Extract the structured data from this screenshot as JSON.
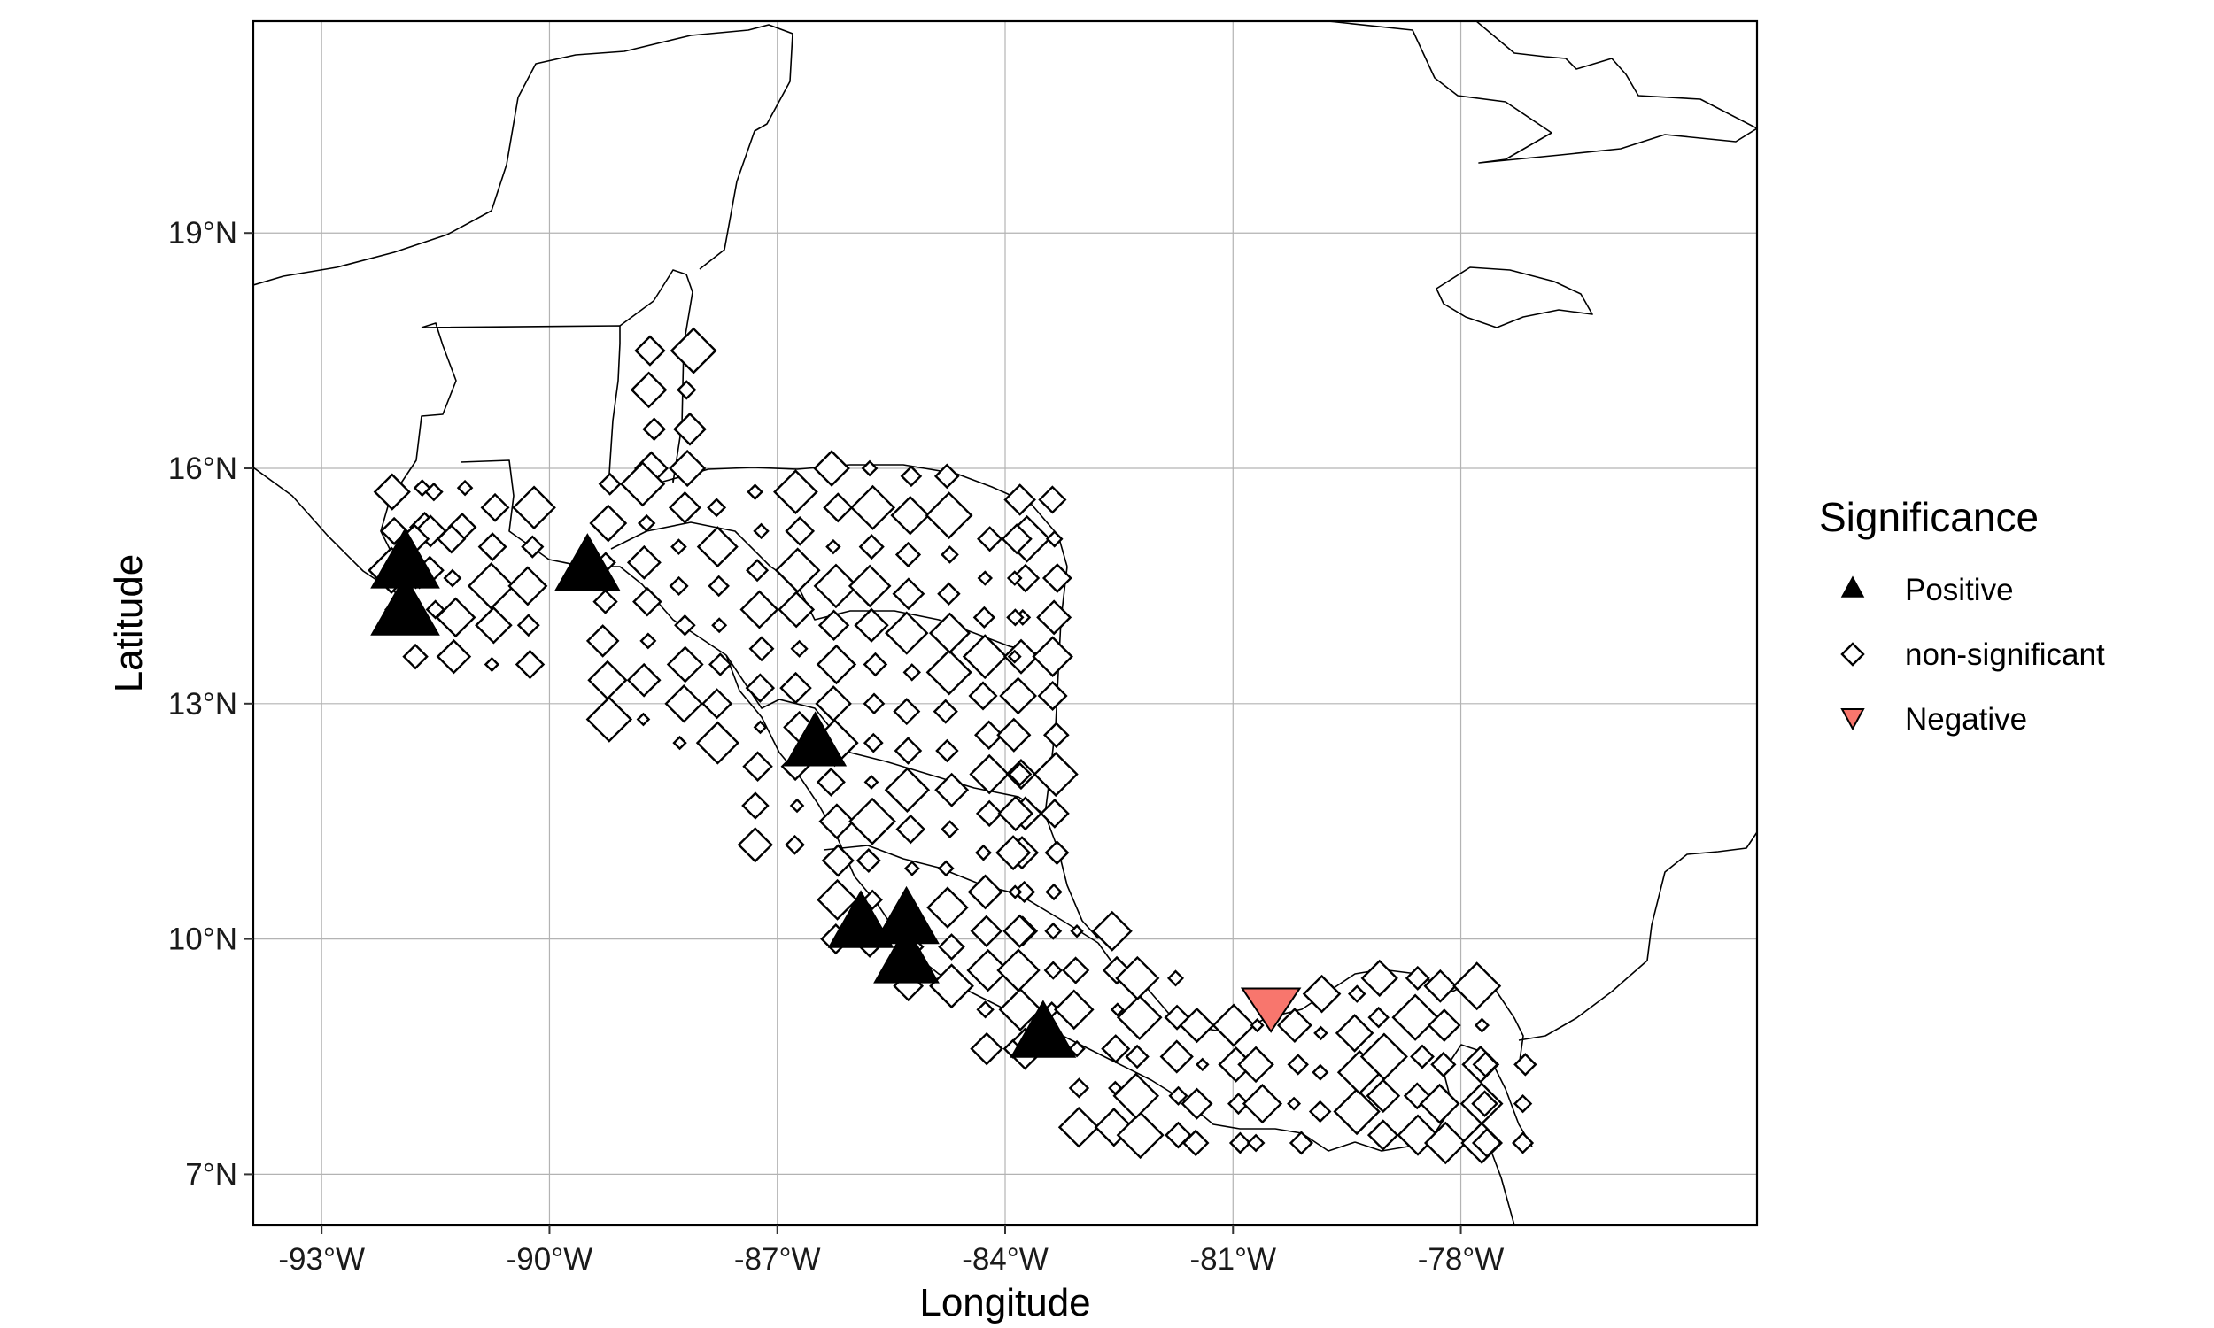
{
  "map": {
    "xlabel": "Longitude",
    "ylabel": "Latitude",
    "xlim": [
      -93.9,
      -74.1
    ],
    "ylim": [
      6.35,
      21.7
    ],
    "x_ticks": [
      {
        "value": -93,
        "label": "-93°W"
      },
      {
        "value": -90,
        "label": "-90°W"
      },
      {
        "value": -87,
        "label": "-87°W"
      },
      {
        "value": -84,
        "label": "-84°W"
      },
      {
        "value": -81,
        "label": "-81°W"
      },
      {
        "value": -78,
        "label": "-78°W"
      }
    ],
    "y_ticks": [
      {
        "value": 7,
        "label": "7°N"
      },
      {
        "value": 10,
        "label": "10°N"
      },
      {
        "value": 13,
        "label": "13°N"
      },
      {
        "value": 16,
        "label": "16°N"
      },
      {
        "value": 19,
        "label": "19°N"
      }
    ],
    "grid": true
  },
  "legend": {
    "title": "Significance",
    "placement": "right",
    "items": [
      {
        "key": "positive",
        "label": "Positive",
        "shape": "triangle-up",
        "color": "#000000"
      },
      {
        "key": "ns",
        "label": "non-significant",
        "shape": "diamond-open",
        "color": "#000000"
      },
      {
        "key": "negative",
        "label": "Negative",
        "shape": "triangle-down",
        "color": "#f8766d"
      }
    ]
  },
  "points": {
    "positive": [
      {
        "lon": -91.9,
        "lat": 14.8,
        "magnitude": 1.0
      },
      {
        "lon": -91.9,
        "lat": 14.2,
        "magnitude": 1.0
      },
      {
        "lon": -89.5,
        "lat": 14.75,
        "magnitude": 0.95
      },
      {
        "lon": -86.5,
        "lat": 12.5,
        "magnitude": 0.9
      },
      {
        "lon": -85.9,
        "lat": 10.2,
        "magnitude": 0.95
      },
      {
        "lon": -85.3,
        "lat": 10.25,
        "magnitude": 0.95
      },
      {
        "lon": -85.3,
        "lat": 9.75,
        "magnitude": 0.95
      },
      {
        "lon": -83.5,
        "lat": 8.8,
        "magnitude": 0.95
      }
    ],
    "negative": [
      {
        "lon": -80.5,
        "lat": 9.15,
        "magnitude": 0.9
      }
    ]
  }
}
